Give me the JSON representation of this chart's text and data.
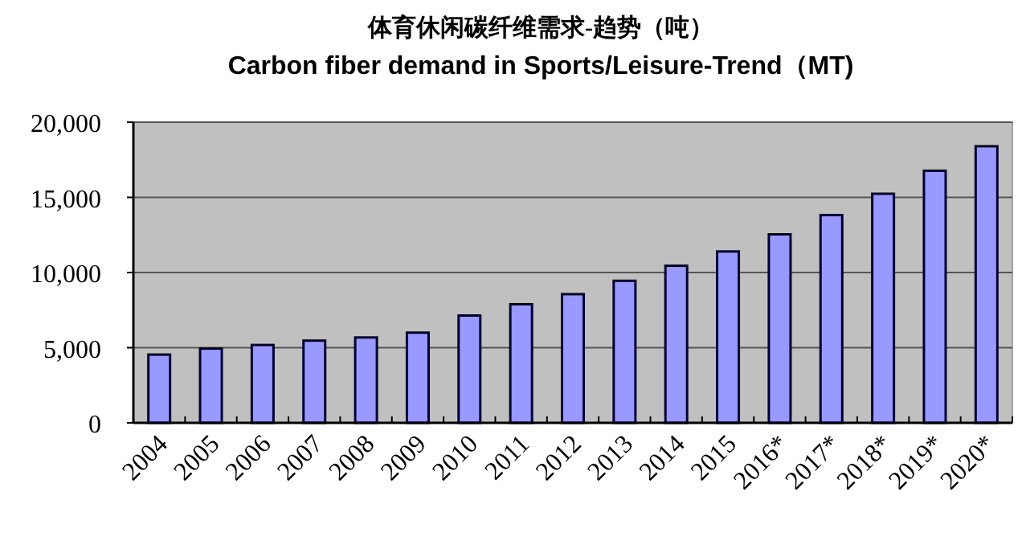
{
  "chart_data": {
    "type": "bar",
    "title": "体育休闲碳纤维需求-趋势（吨）",
    "subtitle": "Carbon fiber demand in Sports/Leisure-Trend（MT)",
    "categories": [
      "2004",
      "2005",
      "2006",
      "2007",
      "2008",
      "2009",
      "2010",
      "2011",
      "2012",
      "2013",
      "2014",
      "2015",
      "2016*",
      "2017*",
      "2018*",
      "2019*",
      "2020*"
    ],
    "values": [
      4540,
      4940,
      5180,
      5470,
      5680,
      6000,
      7140,
      7890,
      8560,
      9450,
      10450,
      11400,
      12540,
      13820,
      15240,
      16770,
      18400
    ],
    "color": "#9999ff",
    "ylim": [
      0,
      20000
    ],
    "yticks": [
      {
        "value": 0,
        "label": "0"
      },
      {
        "value": 5000,
        "label": "5,000"
      },
      {
        "value": 10000,
        "label": "10,000"
      },
      {
        "value": 15000,
        "label": "15,000"
      },
      {
        "value": 20000,
        "label": "20,000"
      }
    ],
    "grid": "y"
  }
}
